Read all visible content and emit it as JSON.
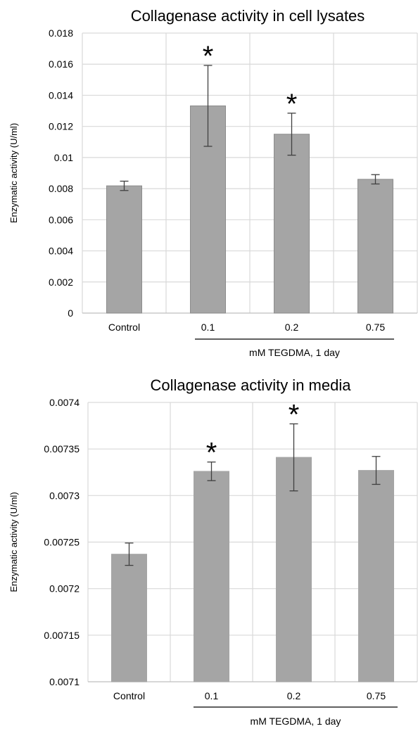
{
  "chart_data": [
    {
      "type": "bar",
      "title": "Collagenase  activity in cell lysates",
      "ylabel": "Enzymatic activity (U/ml)",
      "xlabel": "",
      "group_label": "mM TEGDMA,  1 day",
      "categories": [
        "Control",
        "0.1",
        "0.2",
        "0.75"
      ],
      "values": [
        0.00818,
        0.01332,
        0.0115,
        0.0086
      ],
      "error": [
        0.0003,
        0.0026,
        0.00135,
        0.0003
      ],
      "significance": [
        "",
        "*",
        "*",
        ""
      ],
      "ylim": [
        0,
        0.018
      ],
      "yticks": [
        0,
        0.002,
        0.004,
        0.006,
        0.008,
        0.01,
        0.012,
        0.014,
        0.016,
        0.018
      ],
      "ytick_labels": [
        "0",
        "0.002",
        "0.004",
        "0.006",
        "0.008",
        "0.01",
        "0.012",
        "0.014",
        "0.016",
        "0.018"
      ],
      "grid": true,
      "bar_color": "#a5a5a5",
      "bar_edge_color": "#8c8c8c",
      "grid_color": "#d9d9d9",
      "error_color": "#404040"
    },
    {
      "type": "bar",
      "title": "Collagenase  activity in media",
      "ylabel": "Enzymatic activity (U/ml)",
      "xlabel": "",
      "group_label": "mM TEGDMA,  1 day",
      "categories": [
        "Control",
        "0.1",
        "0.2",
        "0.75"
      ],
      "values": [
        0.007237,
        0.007326,
        0.007341,
        0.007327
      ],
      "error": [
        1.2e-05,
        1e-05,
        3.6e-05,
        1.5e-05
      ],
      "significance": [
        "",
        "*",
        "*",
        ""
      ],
      "ylim": [
        0.0071,
        0.0074
      ],
      "yticks": [
        0.0071,
        0.00715,
        0.0072,
        0.00725,
        0.0073,
        0.00735,
        0.0074
      ],
      "ytick_labels": [
        "0.0071",
        "0.00715",
        "0.0072",
        "0.00725",
        "0.0073",
        "0.00735",
        "0.0074"
      ],
      "grid": true,
      "bar_color": "#a5a5a5",
      "bar_edge_color": "#a5a5a5",
      "grid_color": "#d9d9d9",
      "error_color": "#404040"
    }
  ]
}
